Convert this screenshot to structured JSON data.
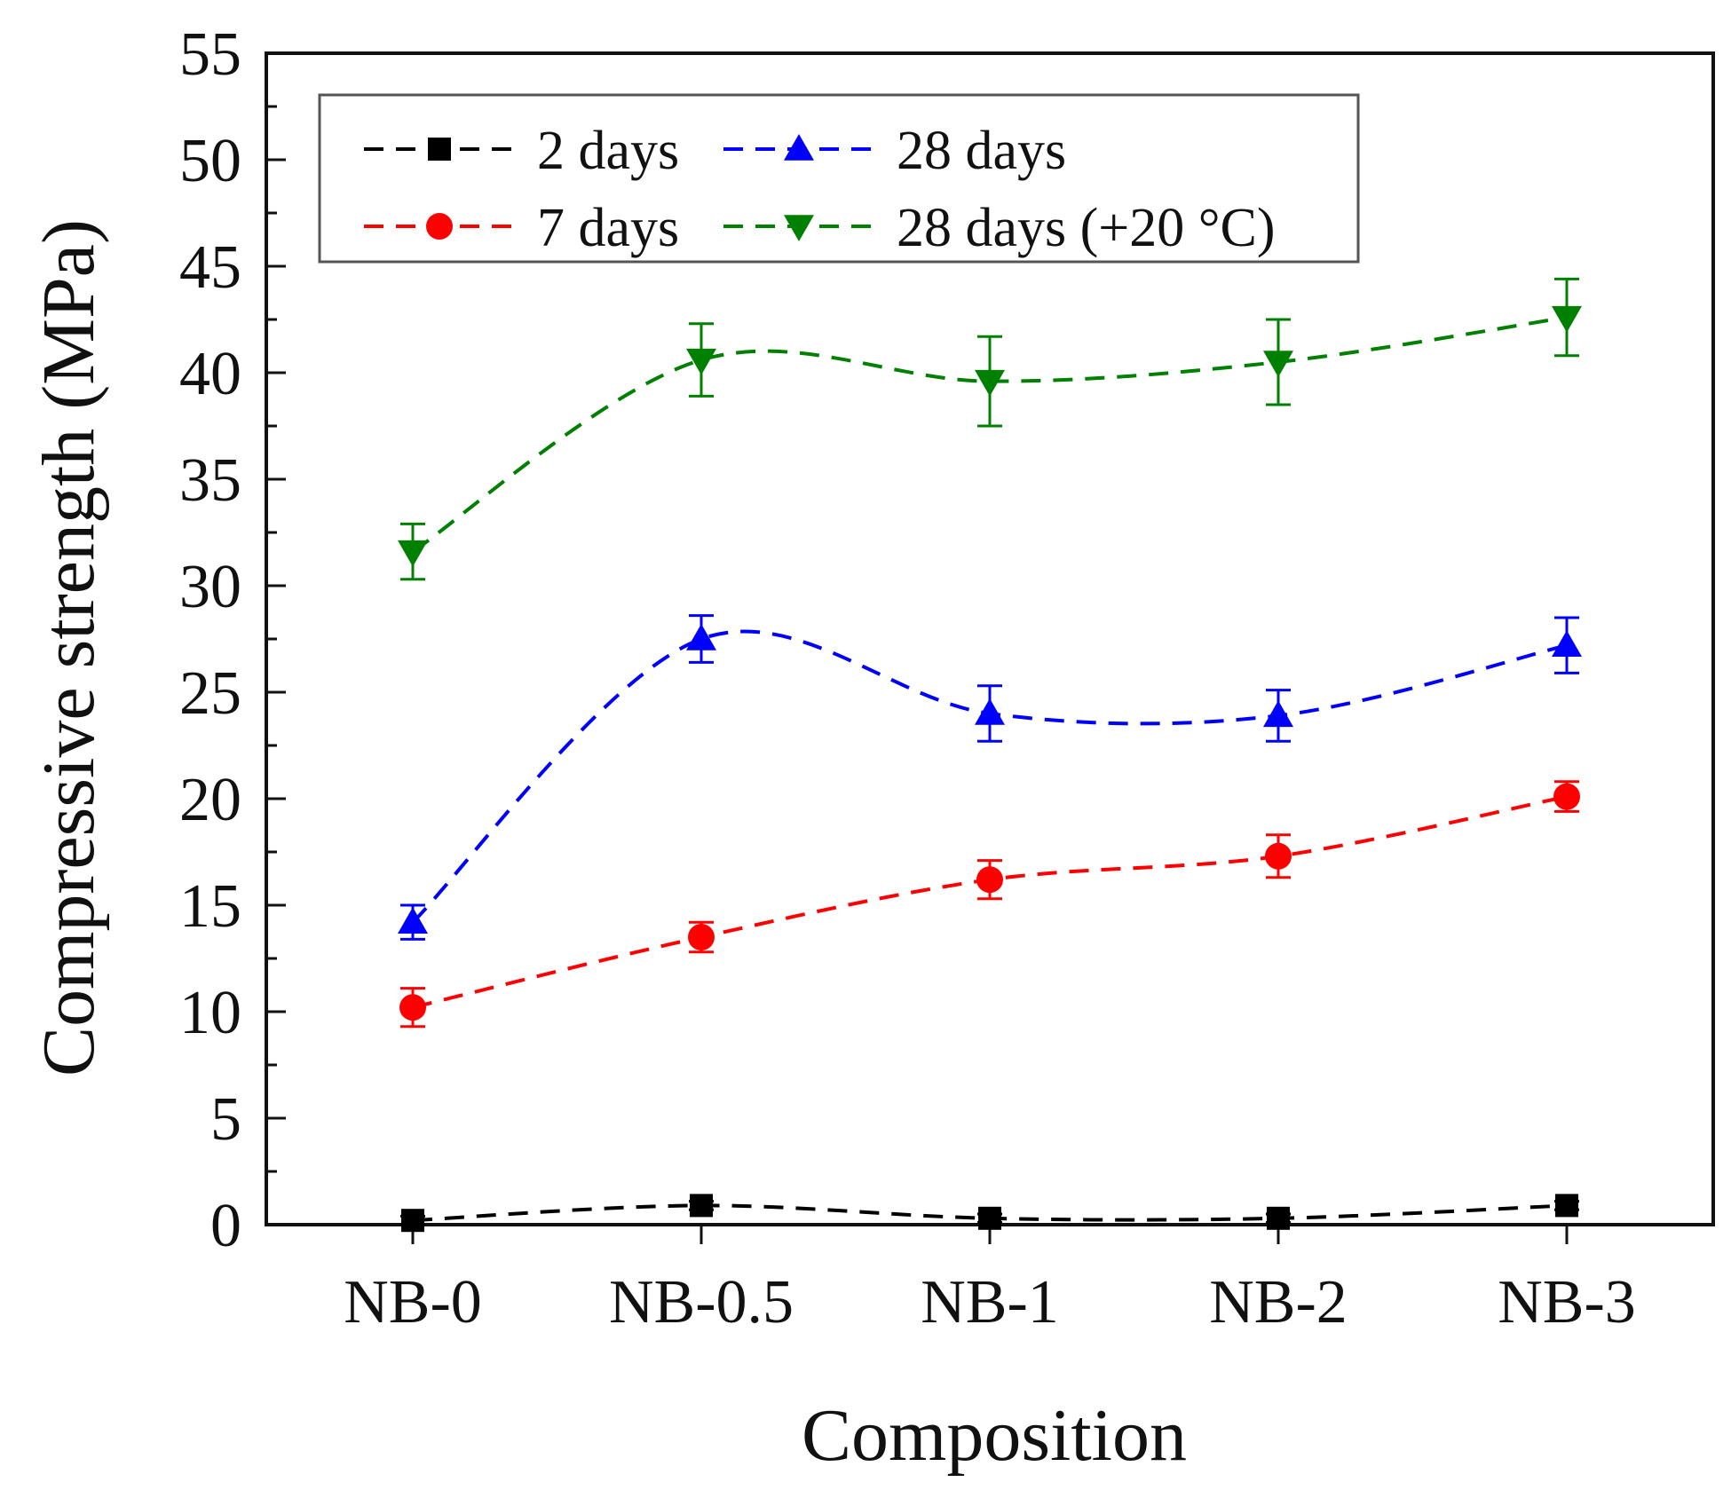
{
  "chart_data": {
    "type": "line",
    "title": "",
    "xlabel": "Composition",
    "ylabel": "Compressive strength (MPa)",
    "categories": [
      "NB-0",
      "NB-0.5",
      "NB-1",
      "NB-2",
      "NB-3"
    ],
    "ylim": [
      0,
      55
    ],
    "yticks": [
      0,
      5,
      10,
      15,
      20,
      25,
      30,
      35,
      40,
      45,
      50,
      55
    ],
    "grid": false,
    "legend_position": "top-left",
    "series": [
      {
        "name": "2 days",
        "color": "#000000",
        "marker": "square",
        "values": [
          0.2,
          0.9,
          0.3,
          0.3,
          0.9
        ],
        "errors": [
          0.2,
          0.2,
          0.2,
          0.2,
          0.2
        ]
      },
      {
        "name": "7 days",
        "color": "#ff0000",
        "marker": "circle",
        "values": [
          10.2,
          13.5,
          16.2,
          17.3,
          20.1
        ],
        "errors": [
          0.9,
          0.7,
          0.9,
          1.0,
          0.7
        ]
      },
      {
        "name": "28 days",
        "color": "#0000ff",
        "marker": "triangle-up",
        "values": [
          14.2,
          27.5,
          24.0,
          23.9,
          27.2
        ],
        "errors": [
          0.8,
          1.1,
          1.3,
          1.2,
          1.3
        ]
      },
      {
        "name": "28 days (+20 °C)",
        "color": "#008000",
        "marker": "triangle-down",
        "values": [
          31.6,
          40.6,
          39.6,
          40.5,
          42.6
        ],
        "errors": [
          1.3,
          1.7,
          2.1,
          2.0,
          1.8
        ]
      }
    ]
  }
}
